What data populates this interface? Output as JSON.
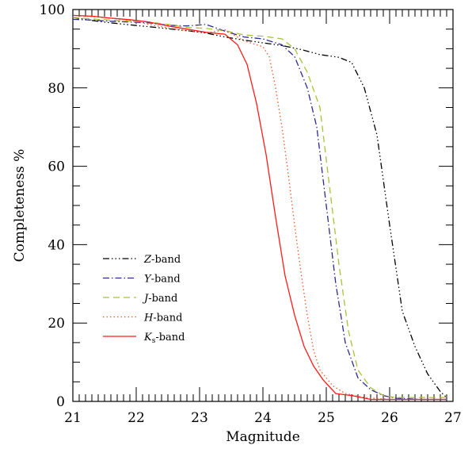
{
  "chart_data": {
    "type": "line",
    "xlabel": "Magnitude",
    "ylabel": "Completeness %",
    "xlim": [
      21,
      27
    ],
    "ylim": [
      0,
      100
    ],
    "x_ticks": [
      "21",
      "22",
      "23",
      "24",
      "25",
      "26",
      "27"
    ],
    "y_ticks": [
      "0",
      "20",
      "40",
      "60",
      "80",
      "100"
    ],
    "grid": false,
    "legend_position": "lower-left",
    "series": [
      {
        "name": "Z",
        "name_suffix": "-band",
        "color": "#000000",
        "dash": "dash-dot-dot-dot",
        "x": [
          21.0,
          21.3,
          21.6,
          21.9,
          22.2,
          22.5,
          22.8,
          23.1,
          23.4,
          23.7,
          24.0,
          24.3,
          24.6,
          24.9,
          25.2,
          25.4,
          25.6,
          25.8,
          26.0,
          26.2,
          26.4,
          26.6,
          26.8,
          26.9
        ],
        "y": [
          98,
          97.2,
          96.6,
          96.1,
          95.6,
          95.1,
          94.6,
          94.0,
          93.0,
          92.2,
          91.5,
          90.8,
          89.8,
          88.5,
          87.8,
          86.5,
          80.0,
          68.0,
          45.0,
          23.0,
          14.0,
          7.0,
          2.5,
          1.0
        ]
      },
      {
        "name": "Y",
        "name_suffix": "-band",
        "color": "#2b2b8f",
        "dash": "dash-dot",
        "x": [
          21.0,
          21.3,
          21.6,
          21.9,
          22.2,
          22.5,
          22.8,
          23.1,
          23.4,
          23.7,
          24.0,
          24.3,
          24.5,
          24.7,
          24.85,
          25.0,
          25.15,
          25.3,
          25.5,
          25.7,
          25.9,
          26.1,
          26.5,
          26.9
        ],
        "y": [
          97.5,
          97.3,
          97.0,
          96.8,
          96.6,
          96.0,
          95.8,
          96.2,
          94.5,
          93.0,
          92.5,
          91.0,
          88.0,
          80.0,
          70.0,
          50.0,
          30.0,
          15.0,
          6.0,
          3.0,
          1.5,
          0.8,
          0.5,
          0.5
        ]
      },
      {
        "name": "J",
        "name_suffix": "-band",
        "color": "#a6c23a",
        "dash": "dash",
        "x": [
          21.0,
          21.3,
          21.6,
          21.9,
          22.2,
          22.5,
          22.8,
          23.1,
          23.4,
          23.7,
          24.0,
          24.3,
          24.5,
          24.7,
          24.9,
          25.05,
          25.2,
          25.35,
          25.5,
          25.7,
          25.9,
          26.1,
          26.5,
          26.9
        ],
        "y": [
          98.0,
          97.6,
          97.3,
          97.0,
          96.8,
          96.2,
          95.4,
          95.2,
          94.6,
          93.5,
          93.2,
          92.5,
          90.0,
          84.0,
          75.0,
          55.0,
          35.0,
          18.0,
          8.0,
          3.5,
          1.5,
          1.0,
          1.0,
          1.0
        ]
      },
      {
        "name": "H",
        "name_suffix": "-band",
        "color": "#f05a28",
        "dash": "dot",
        "x": [
          21.0,
          21.3,
          21.6,
          21.9,
          22.2,
          22.5,
          22.8,
          23.1,
          23.4,
          23.7,
          23.9,
          24.0,
          24.1,
          24.2,
          24.3,
          24.4,
          24.5,
          24.6,
          24.7,
          24.8,
          24.9,
          25.1,
          25.3,
          25.6,
          26.0,
          26.5,
          26.9
        ],
        "y": [
          98.5,
          98.2,
          97.8,
          97.2,
          96.2,
          95.3,
          94.6,
          94.0,
          94.8,
          92.0,
          91.0,
          90.5,
          88.0,
          80.0,
          70.0,
          58.0,
          45.0,
          33.0,
          22.0,
          13.0,
          8.0,
          4.0,
          2.0,
          1.0,
          0.5,
          0.5,
          0.5
        ]
      },
      {
        "name": "K",
        "name_sub": "s",
        "name_suffix": "-band",
        "color": "#ff1a1a",
        "dash": "solid",
        "x": [
          21.0,
          21.3,
          21.6,
          21.9,
          22.2,
          22.5,
          22.8,
          23.1,
          23.4,
          23.6,
          23.75,
          23.9,
          24.05,
          24.2,
          24.35,
          24.5,
          24.65,
          24.8,
          24.95,
          25.15,
          25.4,
          25.7,
          26.0,
          26.5,
          26.9
        ],
        "y": [
          98.5,
          98.3,
          97.8,
          97.4,
          96.8,
          95.8,
          95.0,
          94.2,
          93.7,
          91.0,
          86.0,
          76.0,
          63.0,
          47.0,
          32.0,
          22.0,
          14.0,
          9.0,
          5.5,
          2.0,
          1.5,
          0.5,
          0.5,
          0.5,
          0.5
        ]
      }
    ]
  }
}
